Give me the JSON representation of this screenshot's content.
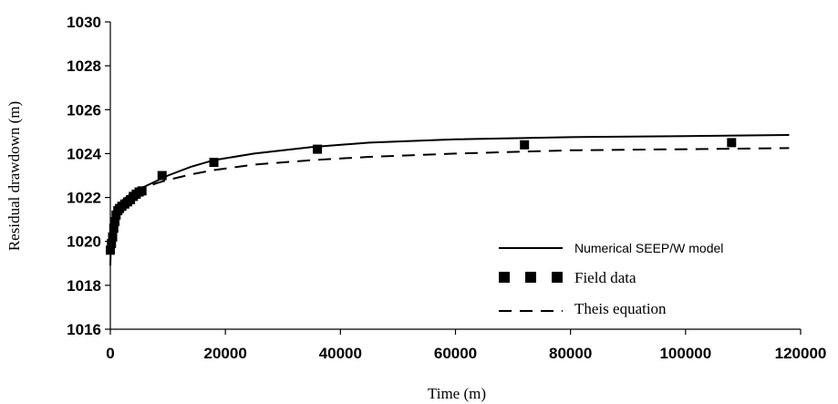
{
  "chart_data": {
    "type": "line",
    "xlabel": "Time (m)",
    "ylabel": "Residual drawdown (m)",
    "xlim": [
      0,
      120000
    ],
    "ylim": [
      1016,
      1030
    ],
    "x_ticks": [
      "0",
      "20000",
      "40000",
      "60000",
      "80000",
      "100000",
      "120000"
    ],
    "y_ticks": [
      "1016",
      "1018",
      "1020",
      "1022",
      "1024",
      "1026",
      "1028",
      "1030"
    ],
    "grid": false,
    "legend_position": "bottom-right",
    "series": [
      {
        "name": "Numerical SEEP/W model",
        "style": "solid",
        "x": [
          0,
          100,
          300,
          600,
          1000,
          1500,
          2000,
          3000,
          4000,
          5000,
          6000,
          8000,
          10000,
          14000,
          18000,
          25000,
          35000,
          45000,
          60000,
          80000,
          100000,
          118000
        ],
        "y": [
          1018.9,
          1019.9,
          1020.6,
          1021.1,
          1021.4,
          1021.65,
          1021.8,
          1022.05,
          1022.25,
          1022.4,
          1022.5,
          1022.75,
          1023.0,
          1023.4,
          1023.7,
          1024.0,
          1024.3,
          1024.5,
          1024.65,
          1024.75,
          1024.8,
          1024.85
        ]
      },
      {
        "name": "Field data",
        "style": "markers",
        "x": [
          0,
          200,
          400,
          600,
          800,
          1000,
          1300,
          1600,
          2000,
          2500,
          3000,
          3500,
          4000,
          4500,
          5000,
          5500,
          9000,
          18000,
          36000,
          72000,
          108000
        ],
        "y": [
          1019.6,
          1019.9,
          1020.2,
          1020.6,
          1020.9,
          1021.2,
          1021.4,
          1021.5,
          1021.6,
          1021.7,
          1021.8,
          1021.9,
          1022.05,
          1022.15,
          1022.25,
          1022.3,
          1023.0,
          1023.6,
          1024.2,
          1024.4,
          1024.5
        ]
      },
      {
        "name": "Theis equation",
        "style": "dashed",
        "x": [
          300,
          600,
          1000,
          1500,
          2000,
          3000,
          4000,
          5000,
          6000,
          8000,
          10000,
          14000,
          18000,
          25000,
          35000,
          45000,
          60000,
          80000,
          100000,
          118000
        ],
        "y": [
          1020.7,
          1021.2,
          1021.5,
          1021.7,
          1021.85,
          1022.05,
          1022.2,
          1022.35,
          1022.45,
          1022.65,
          1022.8,
          1023.05,
          1023.25,
          1023.5,
          1023.7,
          1023.85,
          1024.0,
          1024.15,
          1024.2,
          1024.25
        ]
      }
    ]
  }
}
